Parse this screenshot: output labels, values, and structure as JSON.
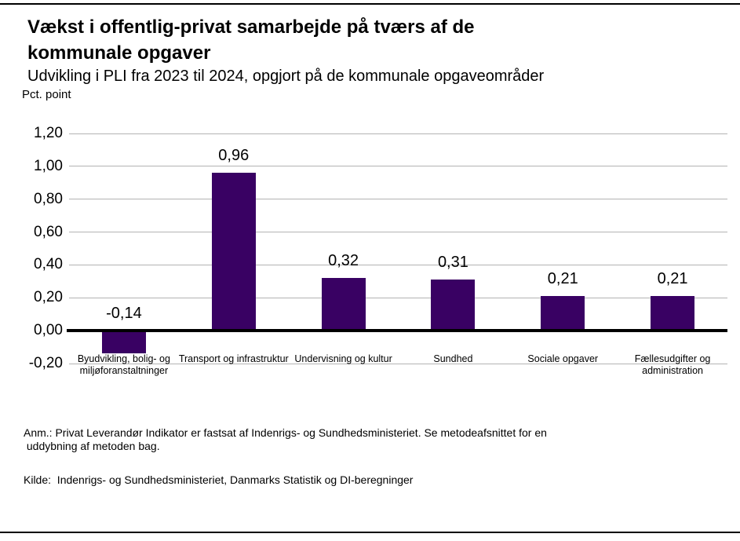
{
  "header": {
    "title_lines": [
      "Vækst i offentlig-privat samarbejde på tværs af de",
      "kommunale opgaver"
    ],
    "subtitle": "Udvikling i PLI fra 2023 til 2024, opgjort på de kommunale opgaveområder",
    "unit_label": "Pct. point"
  },
  "chart_data": {
    "type": "bar",
    "title": "Vækst i offentlig-privat samarbejde på tværs af de kommunale opgaver",
    "subtitle": "Udvikling i PLI fra 2023 til 2024, opgjort på de kommunale opgaveområder",
    "ylabel": "Pct. point",
    "xlabel": "",
    "categories": [
      "Byudvikling, bolig- og miljøforanstaltninger",
      "Transport og infrastruktur",
      "Undervisning og kultur",
      "Sundhed",
      "Sociale opgaver",
      "Fællesudgifter og administration"
    ],
    "values": [
      -0.14,
      0.96,
      0.32,
      0.31,
      0.21,
      0.21
    ],
    "value_labels": [
      "-0,14",
      "0,96",
      "0,32",
      "0,31",
      "0,21",
      "0,21"
    ],
    "ylim": [
      -0.2,
      1.2
    ],
    "y_ticks": [
      {
        "value": 1.2,
        "label": "1,20"
      },
      {
        "value": 1.0,
        "label": "1,00"
      },
      {
        "value": 0.8,
        "label": "0,80"
      },
      {
        "value": 0.6,
        "label": "0,60"
      },
      {
        "value": 0.4,
        "label": "0,40"
      },
      {
        "value": 0.2,
        "label": "0,20"
      },
      {
        "value": 0.0,
        "label": "0,00"
      },
      {
        "value": -0.2,
        "label": "-0,20"
      }
    ],
    "grid": true,
    "legend_position": "none",
    "bar_color": "#390163",
    "gridline_color": "#b3b3b3",
    "zero_line_color": "#000000"
  },
  "notes": {
    "anm_lines": [
      "Anm.: Privat Leverandør Indikator er fastsat af Indenrigs- og Sundhedsministeriet. Se metodeafsnittet for en",
      " uddybning af metoden bag."
    ],
    "kilde": "Kilde:  Indenrigs- og Sundhedsministeriet, Danmarks Statistik og DI-beregninger"
  }
}
